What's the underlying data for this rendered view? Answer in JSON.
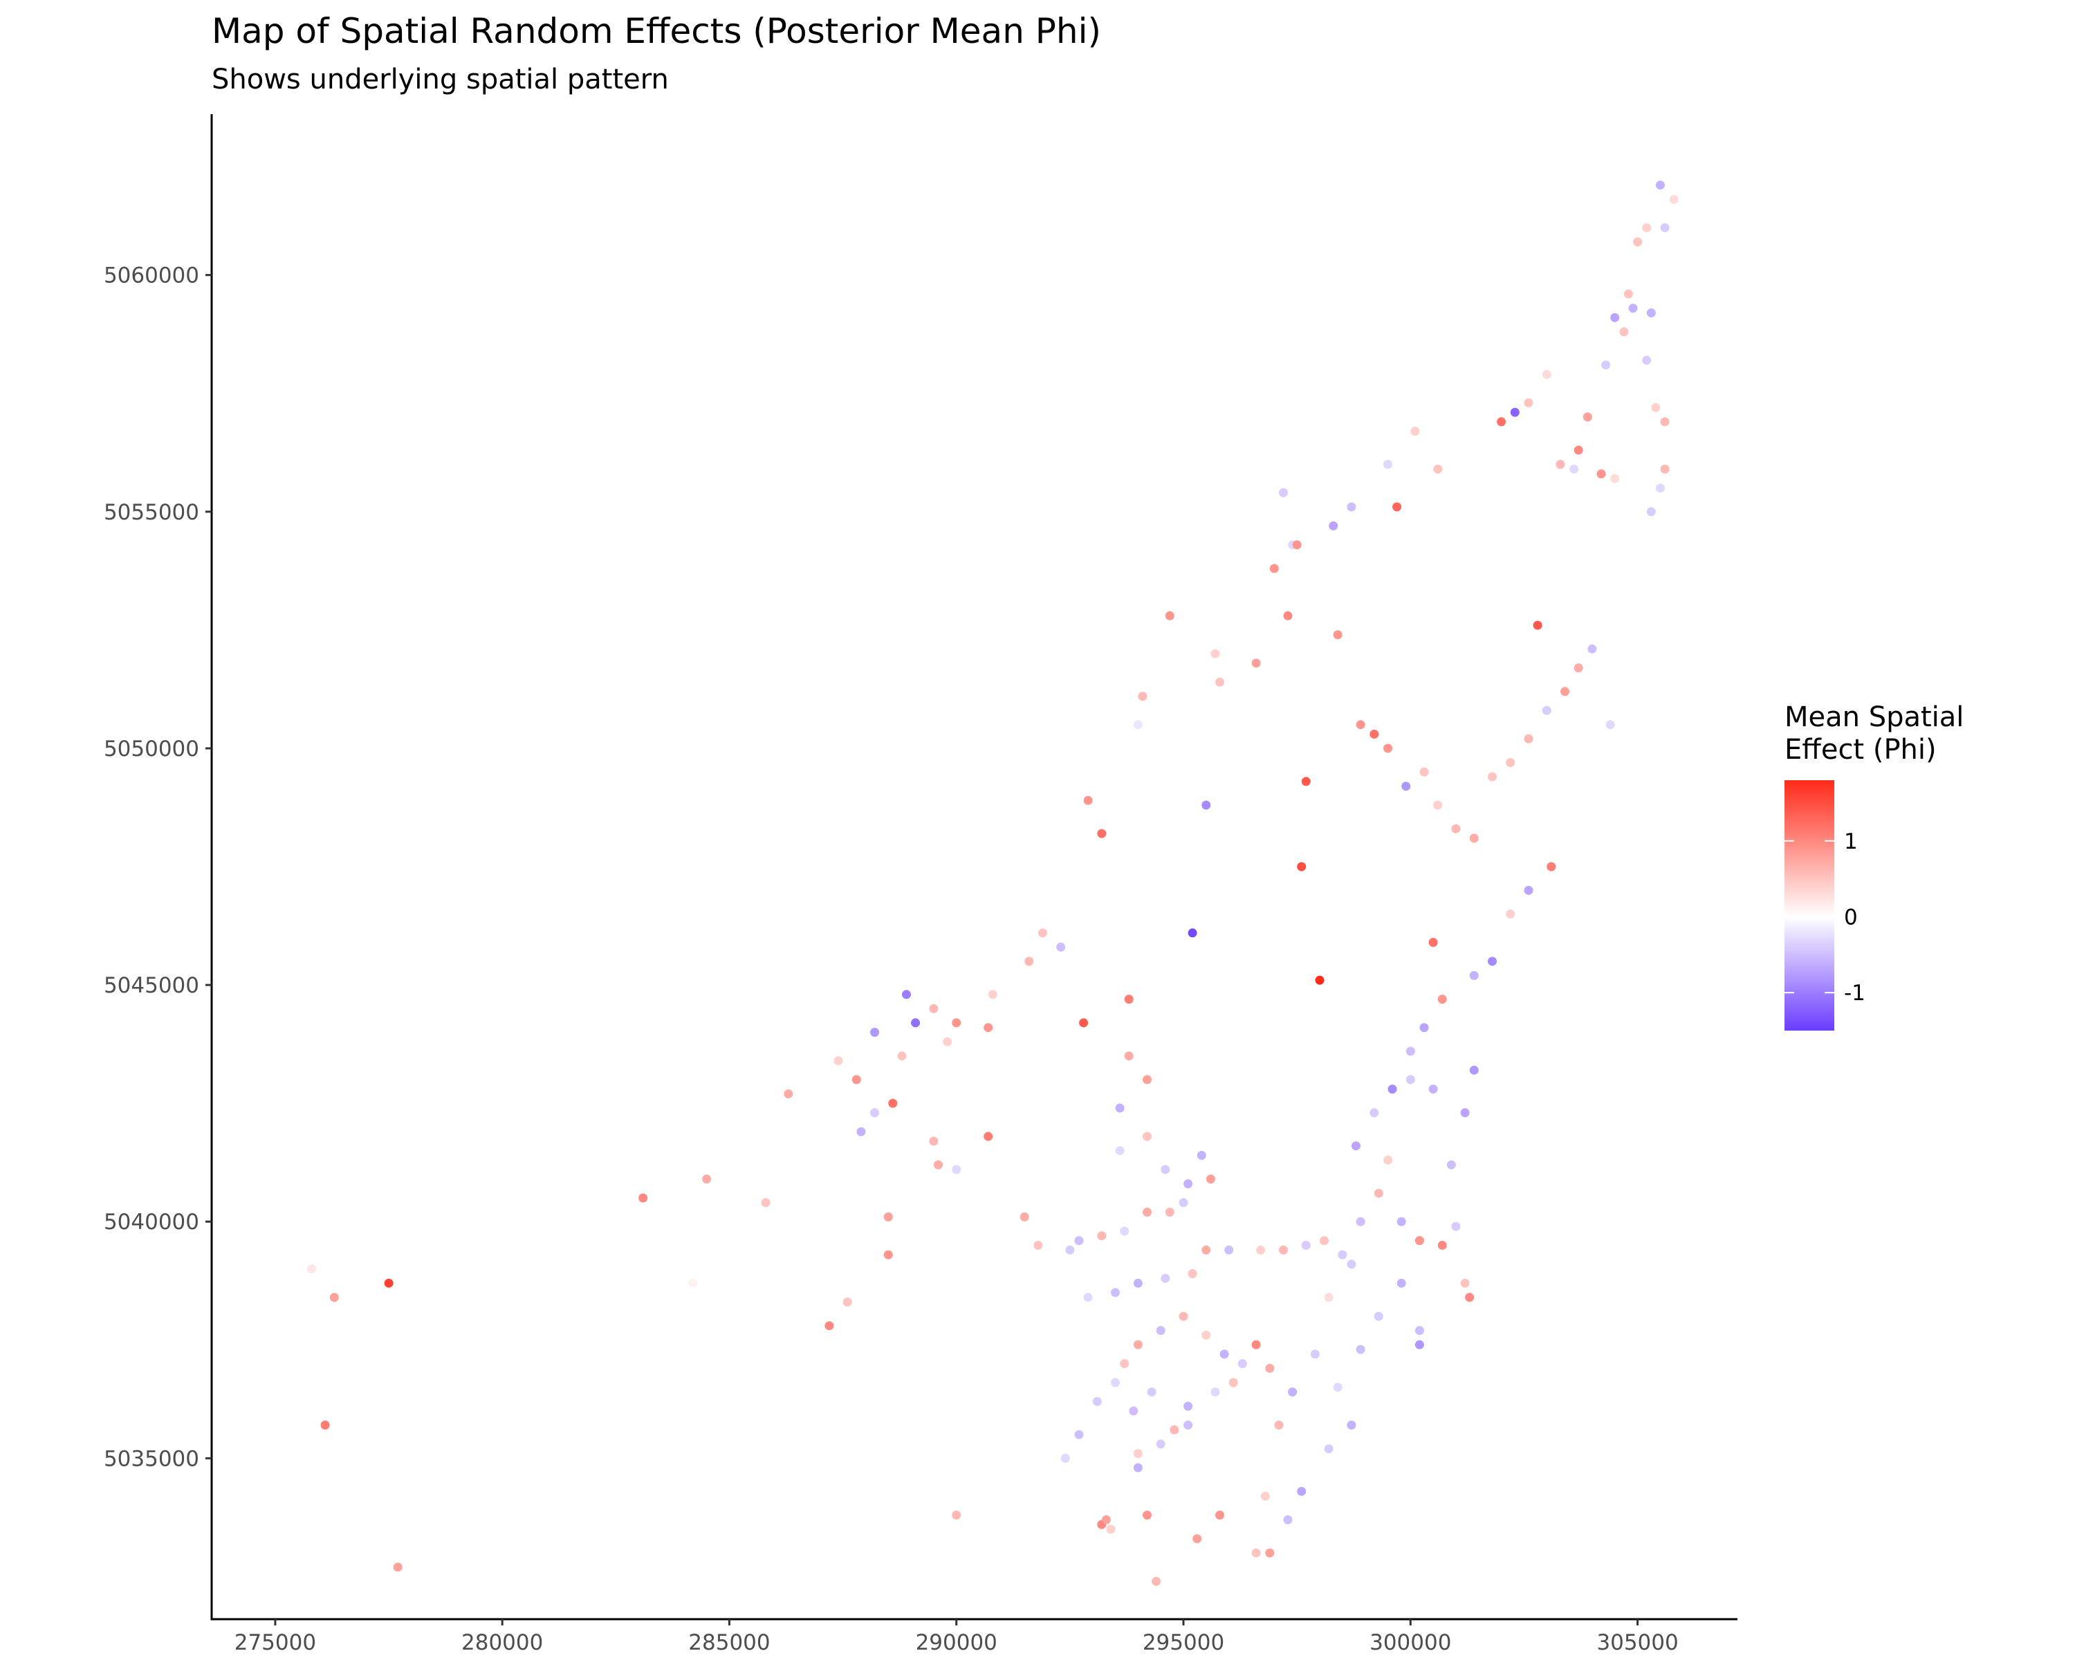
{
  "chart_data": {
    "type": "scatter",
    "title": "Map of Spatial Random Effects (Posterior Mean Phi)",
    "subtitle": "Shows underlying spatial pattern",
    "xlabel": "",
    "ylabel": "",
    "xlim": [
      273600,
      307200
    ],
    "ylim": [
      5031600,
      5063400
    ],
    "x_ticks": [
      275000,
      280000,
      285000,
      290000,
      295000,
      300000,
      305000
    ],
    "x_tick_labels": [
      "275000",
      "280000",
      "285000",
      "290000",
      "295000",
      "300000",
      "305000"
    ],
    "y_ticks": [
      5035000,
      5040000,
      5045000,
      5050000,
      5055000,
      5060000
    ],
    "y_tick_labels": [
      "5035000",
      "5040000",
      "5045000",
      "5050000",
      "5055000",
      "5060000"
    ],
    "grid": false,
    "legend": {
      "title_lines": [
        "Mean Spatial",
        "Effect (Phi)"
      ],
      "position": "right",
      "ticks": [
        1,
        0,
        -1
      ],
      "tick_labels": [
        "1",
        "0",
        "-1"
      ],
      "range": [
        -1.5,
        1.8
      ],
      "colors": {
        "low": "#6b3cff",
        "mid": "#ffffff",
        "high": "#ff2a1a"
      }
    },
    "points": [
      [
        275800,
        5039000,
        0.2
      ],
      [
        276300,
        5038400,
        0.8
      ],
      [
        277500,
        5038700,
        1.6
      ],
      [
        276100,
        5035700,
        1.1
      ],
      [
        277700,
        5032700,
        0.8
      ],
      [
        283100,
        5040500,
        1.0
      ],
      [
        284500,
        5040900,
        0.7
      ],
      [
        285800,
        5040400,
        0.5
      ],
      [
        284200,
        5038700,
        0.1
      ],
      [
        286300,
        5042700,
        0.7
      ],
      [
        287200,
        5037800,
        1.0
      ],
      [
        287600,
        5038300,
        0.5
      ],
      [
        288600,
        5042500,
        1.2
      ],
      [
        288500,
        5040100,
        0.8
      ],
      [
        288500,
        5039300,
        0.9
      ],
      [
        287400,
        5043400,
        0.4
      ],
      [
        287800,
        5043000,
        0.9
      ],
      [
        288200,
        5042300,
        -0.4
      ],
      [
        287900,
        5041900,
        -0.6
      ],
      [
        288200,
        5044000,
        -0.8
      ],
      [
        288900,
        5044800,
        -1.0
      ],
      [
        289100,
        5044200,
        -1.1
      ],
      [
        289500,
        5044500,
        0.6
      ],
      [
        290000,
        5044200,
        0.9
      ],
      [
        289800,
        5043800,
        0.4
      ],
      [
        288800,
        5043500,
        0.5
      ],
      [
        289500,
        5041700,
        0.6
      ],
      [
        289600,
        5041200,
        0.7
      ],
      [
        290000,
        5041100,
        -0.3
      ],
      [
        290700,
        5041800,
        1.1
      ],
      [
        290000,
        5033800,
        0.6
      ],
      [
        290700,
        5044100,
        0.9
      ],
      [
        291500,
        5040100,
        0.7
      ],
      [
        292500,
        5039400,
        -0.4
      ],
      [
        290800,
        5044800,
        0.4
      ],
      [
        291600,
        5045500,
        0.6
      ],
      [
        291900,
        5046100,
        0.5
      ],
      [
        292300,
        5045800,
        -0.5
      ],
      [
        292800,
        5044200,
        1.4
      ],
      [
        293200,
        5048200,
        1.2
      ],
      [
        292900,
        5048900,
        0.9
      ],
      [
        293800,
        5044700,
        1.1
      ],
      [
        294200,
        5043000,
        0.8
      ],
      [
        293600,
        5042400,
        -0.6
      ],
      [
        293800,
        5043500,
        0.7
      ],
      [
        294700,
        5052800,
        0.9
      ],
      [
        294100,
        5051100,
        0.6
      ],
      [
        294000,
        5050500,
        -0.2
      ],
      [
        295200,
        5046100,
        -1.4
      ],
      [
        295500,
        5048800,
        -0.9
      ],
      [
        295700,
        5052000,
        0.4
      ],
      [
        295800,
        5051400,
        0.5
      ],
      [
        296600,
        5051800,
        0.8
      ],
      [
        297000,
        5053800,
        0.9
      ],
      [
        297400,
        5054300,
        -0.3
      ],
      [
        297500,
        5054300,
        0.9
      ],
      [
        297300,
        5052800,
        1.0
      ],
      [
        298400,
        5052400,
        0.9
      ],
      [
        297700,
        5049300,
        1.4
      ],
      [
        297600,
        5047500,
        1.5
      ],
      [
        298000,
        5045100,
        1.8
      ],
      [
        297200,
        5055400,
        -0.4
      ],
      [
        298300,
        5054700,
        -0.7
      ],
      [
        298700,
        5055100,
        -0.5
      ],
      [
        299700,
        5055100,
        1.3
      ],
      [
        299500,
        5056000,
        -0.3
      ],
      [
        300100,
        5056700,
        0.4
      ],
      [
        300600,
        5055900,
        0.5
      ],
      [
        302000,
        5056900,
        1.2
      ],
      [
        302300,
        5057100,
        -1.2
      ],
      [
        302600,
        5057300,
        0.5
      ],
      [
        302800,
        5052600,
        1.4
      ],
      [
        303300,
        5056000,
        0.6
      ],
      [
        303700,
        5056300,
        1.0
      ],
      [
        303600,
        5055900,
        -0.3
      ],
      [
        303900,
        5057000,
        0.8
      ],
      [
        304200,
        5055800,
        0.9
      ],
      [
        304500,
        5055700,
        0.3
      ],
      [
        304800,
        5059600,
        0.5
      ],
      [
        305000,
        5060700,
        0.5
      ],
      [
        305200,
        5061000,
        0.4
      ],
      [
        305500,
        5061900,
        -0.6
      ],
      [
        305800,
        5061600,
        0.3
      ],
      [
        305600,
        5061000,
        -0.4
      ],
      [
        304900,
        5059300,
        -0.6
      ],
      [
        304700,
        5058800,
        0.5
      ],
      [
        304500,
        5059100,
        -0.7
      ],
      [
        304300,
        5058100,
        -0.4
      ],
      [
        305300,
        5059200,
        -0.6
      ],
      [
        305200,
        5058200,
        -0.4
      ],
      [
        305400,
        5057200,
        0.4
      ],
      [
        305600,
        5056900,
        0.6
      ],
      [
        305600,
        5055900,
        0.6
      ],
      [
        305500,
        5055500,
        -0.3
      ],
      [
        305300,
        5055000,
        -0.4
      ],
      [
        303000,
        5057900,
        0.3
      ],
      [
        304400,
        5050500,
        -0.3
      ],
      [
        298900,
        5050500,
        0.9
      ],
      [
        299200,
        5050300,
        1.2
      ],
      [
        299500,
        5050000,
        0.9
      ],
      [
        299900,
        5049200,
        -0.8
      ],
      [
        300300,
        5049500,
        0.5
      ],
      [
        300600,
        5048800,
        0.4
      ],
      [
        301000,
        5048300,
        0.6
      ],
      [
        301400,
        5048100,
        0.7
      ],
      [
        301800,
        5049400,
        0.5
      ],
      [
        302200,
        5049700,
        0.5
      ],
      [
        302600,
        5050200,
        0.6
      ],
      [
        303000,
        5050800,
        -0.4
      ],
      [
        303400,
        5051200,
        0.8
      ],
      [
        303700,
        5051700,
        0.7
      ],
      [
        304000,
        5052100,
        -0.5
      ],
      [
        303100,
        5047500,
        1.1
      ],
      [
        302600,
        5047000,
        -0.7
      ],
      [
        302200,
        5046500,
        0.4
      ],
      [
        301800,
        5045500,
        -0.9
      ],
      [
        301400,
        5045200,
        -0.6
      ],
      [
        300500,
        5045900,
        1.2
      ],
      [
        300700,
        5044700,
        0.9
      ],
      [
        300300,
        5044100,
        -0.7
      ],
      [
        300000,
        5043600,
        -0.5
      ],
      [
        299600,
        5042800,
        -0.9
      ],
      [
        299200,
        5042300,
        -0.4
      ],
      [
        298800,
        5041600,
        -0.7
      ],
      [
        299300,
        5040600,
        0.6
      ],
      [
        299800,
        5040000,
        -0.6
      ],
      [
        300200,
        5039600,
        0.9
      ],
      [
        300700,
        5039500,
        1.0
      ],
      [
        301200,
        5038700,
        0.5
      ],
      [
        301300,
        5038400,
        1.0
      ],
      [
        301000,
        5039900,
        -0.4
      ],
      [
        300900,
        5041200,
        -0.5
      ],
      [
        301200,
        5042300,
        -0.7
      ],
      [
        301400,
        5043200,
        -0.8
      ],
      [
        300500,
        5042800,
        -0.6
      ],
      [
        300000,
        5043000,
        -0.4
      ],
      [
        299500,
        5041300,
        0.4
      ],
      [
        298900,
        5040000,
        -0.5
      ],
      [
        298500,
        5039300,
        -0.4
      ],
      [
        298200,
        5038400,
        0.3
      ],
      [
        297900,
        5037200,
        -0.4
      ],
      [
        297400,
        5036400,
        -0.6
      ],
      [
        297100,
        5035700,
        0.6
      ],
      [
        296800,
        5034200,
        0.4
      ],
      [
        296600,
        5033000,
        0.5
      ],
      [
        296900,
        5033000,
        0.8
      ],
      [
        297300,
        5033700,
        -0.5
      ],
      [
        297600,
        5034300,
        -0.7
      ],
      [
        298200,
        5035200,
        -0.4
      ],
      [
        298700,
        5035700,
        -0.6
      ],
      [
        298400,
        5036500,
        -0.3
      ],
      [
        298900,
        5037300,
        -0.5
      ],
      [
        299300,
        5038000,
        -0.4
      ],
      [
        299800,
        5038700,
        -0.6
      ],
      [
        300200,
        5037700,
        -0.5
      ],
      [
        300200,
        5037400,
        -0.8
      ],
      [
        294400,
        5032400,
        0.6
      ],
      [
        295300,
        5033300,
        0.8
      ],
      [
        295800,
        5033800,
        0.9
      ],
      [
        294200,
        5033800,
        0.9
      ],
      [
        293200,
        5033600,
        1.0
      ],
      [
        293400,
        5033500,
        0.4
      ],
      [
        293300,
        5033700,
        0.8
      ],
      [
        294000,
        5034800,
        -0.6
      ],
      [
        294500,
        5035300,
        -0.4
      ],
      [
        294800,
        5035600,
        0.6
      ],
      [
        295100,
        5035700,
        -0.5
      ],
      [
        294000,
        5035100,
        0.4
      ],
      [
        293500,
        5036600,
        -0.3
      ],
      [
        293100,
        5036200,
        -0.4
      ],
      [
        292700,
        5035500,
        -0.5
      ],
      [
        292400,
        5035000,
        -0.3
      ],
      [
        293700,
        5037000,
        0.5
      ],
      [
        294000,
        5037400,
        0.7
      ],
      [
        294500,
        5037700,
        -0.5
      ],
      [
        295000,
        5038000,
        0.6
      ],
      [
        295500,
        5037600,
        0.4
      ],
      [
        295900,
        5037200,
        -0.6
      ],
      [
        296300,
        5037000,
        -0.4
      ],
      [
        296600,
        5037400,
        1.0
      ],
      [
        296900,
        5036900,
        0.7
      ],
      [
        295100,
        5036100,
        -0.6
      ],
      [
        295700,
        5036400,
        -0.3
      ],
      [
        296100,
        5036600,
        0.5
      ],
      [
        294300,
        5036400,
        -0.4
      ],
      [
        293900,
        5036000,
        -0.5
      ],
      [
        291800,
        5039500,
        0.5
      ],
      [
        292700,
        5039600,
        -0.5
      ],
      [
        293200,
        5039700,
        0.6
      ],
      [
        293700,
        5039800,
        -0.3
      ],
      [
        294200,
        5040200,
        0.7
      ],
      [
        294700,
        5040200,
        0.6
      ],
      [
        295000,
        5040400,
        -0.4
      ],
      [
        295500,
        5039400,
        0.7
      ],
      [
        296000,
        5039400,
        -0.5
      ],
      [
        296700,
        5039400,
        0.4
      ],
      [
        297200,
        5039400,
        0.6
      ],
      [
        297700,
        5039500,
        -0.4
      ],
      [
        298100,
        5039600,
        0.5
      ],
      [
        298700,
        5039100,
        -0.4
      ],
      [
        295200,
        5038900,
        0.5
      ],
      [
        294600,
        5038800,
        -0.4
      ],
      [
        294000,
        5038700,
        -0.6
      ],
      [
        293500,
        5038500,
        -0.5
      ],
      [
        292900,
        5038400,
        -0.3
      ],
      [
        295400,
        5041400,
        -0.6
      ],
      [
        295600,
        5040900,
        0.8
      ],
      [
        295100,
        5040800,
        -0.6
      ],
      [
        294600,
        5041100,
        -0.4
      ],
      [
        294200,
        5041800,
        0.5
      ],
      [
        293600,
        5041500,
        -0.3
      ]
    ]
  }
}
